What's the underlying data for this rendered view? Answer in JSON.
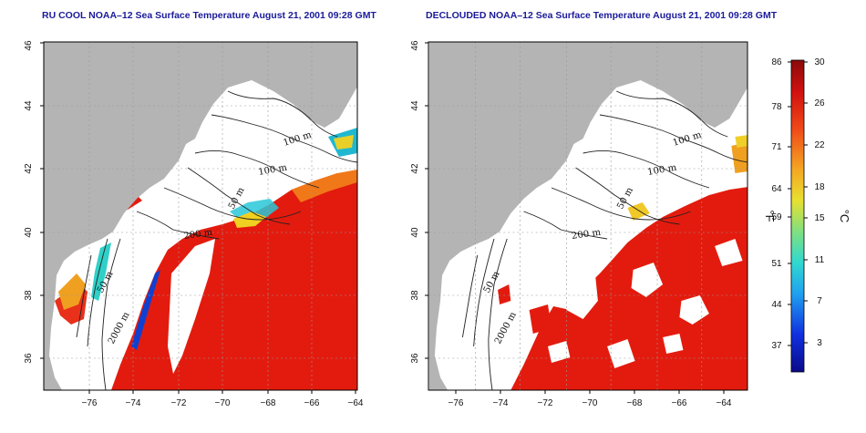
{
  "panels": [
    {
      "id": "left",
      "title": "RU COOL NOAA–12 Sea Surface Temperature August 21, 2001 09:28 GMT",
      "contour_labels": [
        "100 m",
        "100 m",
        "50 m",
        "200 m",
        "50 m",
        "2000 m"
      ]
    },
    {
      "id": "right",
      "title": "DECLOUDED NOAA–12 Sea Surface Temperature August 21, 2001 09:28 GMT",
      "contour_labels": [
        "100 m",
        "100 m",
        "50 m",
        "200 m",
        "50 m",
        "2000 m"
      ]
    }
  ],
  "axes": {
    "x_ticks": [
      "−76",
      "−74",
      "−72",
      "−70",
      "−68",
      "−66",
      "−64"
    ],
    "y_ticks": [
      "36",
      "38",
      "40",
      "42",
      "44",
      "46"
    ],
    "x_range": [
      -77,
      -63
    ],
    "y_range": [
      35,
      46
    ]
  },
  "colorbar": {
    "fahrenheit_label": "°F",
    "celsius_label": "°C",
    "fahrenheit_ticks": [
      "86",
      "78",
      "71",
      "64",
      "59",
      "51",
      "44",
      "37"
    ],
    "celsius_ticks": [
      "30",
      "26",
      "22",
      "18",
      "15",
      "11",
      "7",
      "3"
    ],
    "range_celsius": [
      0,
      30
    ]
  },
  "colors": {
    "title": "#1a1a9a",
    "land": "#b4b4b4",
    "hot": "#e31b0e",
    "warm": "#f5a623",
    "cool": "#20c0d8",
    "cold": "#0a1aa0"
  }
}
